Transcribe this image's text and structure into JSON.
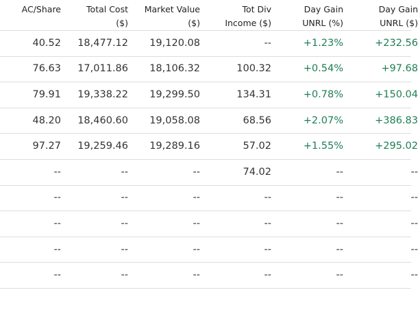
{
  "table": {
    "headers": [
      [
        "AC/Share"
      ],
      [
        "Total Cost",
        "($)"
      ],
      [
        "Market Value",
        "($)"
      ],
      [
        "Tot Div",
        "Income ($)"
      ],
      [
        "Day Gain",
        "UNRL (%)"
      ],
      [
        "Day Gain",
        "UNRL ($)"
      ]
    ],
    "rows": [
      [
        "40.52",
        "18,477.12",
        "19,120.08",
        "--",
        "+1.23%",
        "+232.56"
      ],
      [
        "76.63",
        "17,011.86",
        "18,106.32",
        "100.32",
        "+0.54%",
        "+97.68"
      ],
      [
        "79.91",
        "19,338.22",
        "19,299.50",
        "134.31",
        "+0.78%",
        "+150.04"
      ],
      [
        "48.20",
        "18,460.60",
        "19,058.08",
        "68.56",
        "+2.07%",
        "+386.83"
      ],
      [
        "97.27",
        "19,259.46",
        "19,289.16",
        "57.02",
        "+1.55%",
        "+295.02"
      ],
      [
        "--",
        "--",
        "--",
        "74.02",
        "--",
        "--"
      ],
      [
        "--",
        "--",
        "--",
        "--",
        "--",
        "--"
      ],
      [
        "--",
        "--",
        "--",
        "--",
        "--",
        "--"
      ],
      [
        "--",
        "--",
        "--",
        "--",
        "--",
        "--"
      ],
      [
        "--",
        "--",
        "--",
        "--",
        "--",
        "--"
      ]
    ]
  }
}
